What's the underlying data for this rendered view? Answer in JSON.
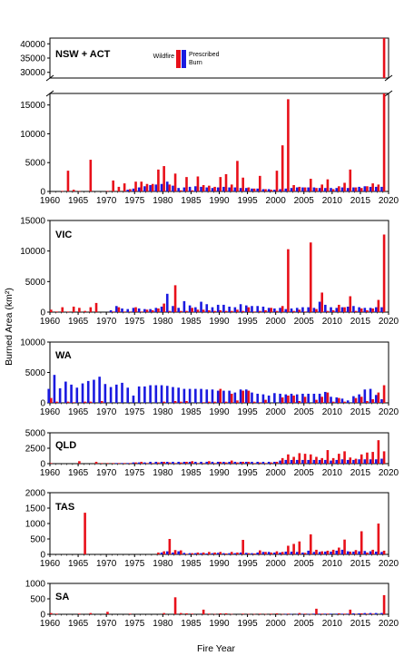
{
  "chart_data": {
    "type": "bar",
    "xlabel": "Fire Year",
    "ylabel": "Burned Area (km²)",
    "x_start": 1960,
    "x_end": 2020,
    "x_ticks": [
      "1960",
      "1965",
      "1970",
      "1975",
      "1980",
      "1985",
      "1990",
      "1995",
      "2000",
      "2005",
      "2010",
      "2015",
      "2020"
    ],
    "legend": {
      "wildfire": "Wildfire",
      "prescribed_line1": "Prescribed",
      "prescribed_line2": "Burn",
      "position": "top-center"
    },
    "colors": {
      "wildfire": "#e8101a",
      "prescribed": "#1a1ae0"
    },
    "years": [
      1960,
      1961,
      1962,
      1963,
      1964,
      1965,
      1966,
      1967,
      1968,
      1969,
      1970,
      1971,
      1972,
      1973,
      1974,
      1975,
      1976,
      1977,
      1978,
      1979,
      1980,
      1981,
      1982,
      1983,
      1984,
      1985,
      1986,
      1987,
      1988,
      1989,
      1990,
      1991,
      1992,
      1993,
      1994,
      1995,
      1996,
      1997,
      1998,
      1999,
      2000,
      2001,
      2002,
      2003,
      2004,
      2005,
      2006,
      2007,
      2008,
      2009,
      2010,
      2011,
      2012,
      2013,
      2014,
      2015,
      2016,
      2017,
      2018,
      2019
    ],
    "panels": [
      {
        "region": "NSW + ACT",
        "axis_break": true,
        "lower_ylim": [
          0,
          17000
        ],
        "lower_ticks": [
          "0",
          "5000",
          "10000",
          "15000"
        ],
        "upper_ylim": [
          28000,
          42000
        ],
        "upper_ticks": [
          "30000",
          "35000",
          "40000"
        ],
        "wildfire": [
          0,
          0,
          100,
          3600,
          300,
          100,
          0,
          5500,
          0,
          0,
          100,
          1900,
          800,
          1400,
          400,
          1700,
          1700,
          1300,
          1300,
          3800,
          4400,
          1200,
          3100,
          200,
          2500,
          200,
          2600,
          1100,
          1000,
          800,
          2500,
          3000,
          1200,
          5300,
          2400,
          700,
          500,
          2700,
          400,
          300,
          3600,
          8000,
          16000,
          1100,
          800,
          700,
          2200,
          600,
          1200,
          2100,
          400,
          900,
          1500,
          3800,
          700,
          600,
          900,
          1400,
          1200,
          42000
        ],
        "prescribed": [
          0,
          0,
          0,
          0,
          0,
          0,
          0,
          0,
          0,
          0,
          0,
          0,
          0,
          0,
          300,
          500,
          700,
          900,
          1100,
          1200,
          1300,
          1700,
          1000,
          600,
          700,
          800,
          900,
          800,
          700,
          600,
          700,
          800,
          700,
          700,
          600,
          600,
          500,
          500,
          400,
          400,
          300,
          400,
          500,
          600,
          700,
          700,
          700,
          700,
          600,
          600,
          600,
          600,
          700,
          600,
          700,
          800,
          900,
          800,
          800,
          800
        ]
      },
      {
        "region": "VIC",
        "ylim": [
          0,
          15000
        ],
        "ticks": [
          "0",
          "5000",
          "10000",
          "15000"
        ],
        "wildfire": [
          400,
          100,
          800,
          100,
          900,
          700,
          200,
          800,
          1500,
          0,
          0,
          100,
          800,
          100,
          100,
          800,
          100,
          400,
          300,
          600,
          1400,
          200,
          4400,
          200,
          200,
          700,
          400,
          400,
          300,
          200,
          300,
          200,
          200,
          400,
          200,
          800,
          100,
          200,
          300,
          700,
          200,
          1000,
          10300,
          200,
          400,
          100,
          11400,
          500,
          3200,
          200,
          300,
          1200,
          800,
          2600,
          200,
          600,
          300,
          600,
          2000,
          12700
        ],
        "prescribed": [
          0,
          0,
          0,
          0,
          0,
          0,
          0,
          0,
          0,
          0,
          0,
          300,
          1000,
          600,
          500,
          700,
          600,
          500,
          500,
          700,
          900,
          3000,
          1000,
          700,
          1800,
          1100,
          800,
          1700,
          1300,
          800,
          1200,
          1200,
          900,
          800,
          1300,
          1100,
          1000,
          1000,
          900,
          700,
          600,
          700,
          500,
          600,
          700,
          800,
          800,
          700,
          1700,
          1200,
          800,
          700,
          800,
          900,
          1000,
          800,
          700,
          700,
          800,
          800
        ]
      },
      {
        "region": "WA",
        "ylim": [
          0,
          10000
        ],
        "ticks": [
          "0",
          "5000",
          "10000"
        ],
        "wildfire": [
          800,
          200,
          0,
          200,
          100,
          0,
          200,
          200,
          0,
          300,
          0,
          0,
          0,
          0,
          0,
          0,
          0,
          0,
          0,
          0,
          200,
          0,
          300,
          200,
          300,
          0,
          0,
          100,
          200,
          200,
          2300,
          200,
          1500,
          400,
          2000,
          2000,
          200,
          100,
          500,
          0,
          0,
          900,
          1200,
          1200,
          300,
          1000,
          0,
          500,
          1000,
          1700,
          200,
          800,
          200,
          0,
          800,
          1000,
          300,
          600,
          1700,
          2900
        ],
        "prescribed": [
          2300,
          4600,
          2400,
          3500,
          3000,
          2500,
          3200,
          3600,
          3800,
          4300,
          3100,
          2600,
          3000,
          3300,
          2500,
          1200,
          2700,
          2700,
          2900,
          2900,
          2900,
          2800,
          2600,
          2500,
          2300,
          2300,
          2300,
          2300,
          2200,
          2200,
          2000,
          2000,
          2000,
          1700,
          2200,
          2200,
          1700,
          1500,
          1400,
          1200,
          1600,
          1500,
          1400,
          1500,
          1400,
          1500,
          1500,
          1500,
          1500,
          1800,
          1000,
          900,
          700,
          400,
          1100,
          1400,
          2200,
          2300,
          1300,
          600
        ]
      },
      {
        "region": "QLD",
        "ylim": [
          0,
          5000
        ],
        "ticks": [
          "0",
          "2500",
          "5000"
        ],
        "wildfire": [
          100,
          0,
          0,
          0,
          0,
          400,
          0,
          0,
          300,
          100,
          100,
          100,
          100,
          100,
          100,
          200,
          300,
          100,
          100,
          200,
          300,
          200,
          100,
          200,
          300,
          400,
          100,
          100,
          400,
          100,
          300,
          200,
          500,
          200,
          300,
          300,
          100,
          200,
          100,
          200,
          300,
          900,
          1500,
          1100,
          1700,
          1600,
          1500,
          1100,
          900,
          2200,
          900,
          1600,
          2000,
          1000,
          800,
          1500,
          1800,
          1900,
          3800,
          2000
        ],
        "prescribed": [
          0,
          0,
          0,
          0,
          0,
          0,
          0,
          0,
          0,
          0,
          0,
          0,
          100,
          100,
          100,
          200,
          200,
          200,
          300,
          300,
          300,
          300,
          300,
          300,
          300,
          300,
          300,
          300,
          300,
          300,
          300,
          300,
          300,
          300,
          300,
          300,
          300,
          300,
          300,
          300,
          300,
          500,
          600,
          600,
          600,
          600,
          600,
          600,
          600,
          600,
          500,
          600,
          700,
          600,
          600,
          700,
          700,
          700,
          700,
          800
        ]
      },
      {
        "region": "TAS",
        "ylim": [
          0,
          2000
        ],
        "ticks": [
          "0",
          "500",
          "1000",
          "1500",
          "2000"
        ],
        "wildfire": [
          0,
          0,
          0,
          0,
          0,
          0,
          1350,
          0,
          0,
          0,
          0,
          0,
          0,
          0,
          0,
          0,
          0,
          0,
          0,
          60,
          100,
          500,
          140,
          130,
          20,
          40,
          60,
          60,
          80,
          60,
          80,
          30,
          80,
          60,
          470,
          40,
          30,
          130,
          80,
          60,
          100,
          80,
          280,
          340,
          420,
          50,
          650,
          150,
          100,
          120,
          150,
          220,
          480,
          90,
          140,
          750,
          60,
          150,
          1000,
          120
        ],
        "prescribed": [
          0,
          0,
          0,
          0,
          0,
          0,
          0,
          0,
          0,
          0,
          0,
          0,
          0,
          0,
          0,
          0,
          0,
          0,
          0,
          0,
          60,
          100,
          60,
          100,
          50,
          40,
          40,
          40,
          30,
          40,
          50,
          40,
          40,
          40,
          60,
          50,
          40,
          60,
          80,
          80,
          60,
          60,
          90,
          90,
          80,
          60,
          120,
          80,
          80,
          90,
          90,
          120,
          150,
          100,
          90,
          100,
          110,
          100,
          90,
          80
        ]
      },
      {
        "region": "SA",
        "ylim": [
          0,
          1000
        ],
        "ticks": [
          "0",
          "500",
          "1000"
        ],
        "wildfire": [
          40,
          20,
          0,
          0,
          0,
          20,
          0,
          40,
          0,
          0,
          80,
          0,
          0,
          0,
          20,
          0,
          0,
          0,
          0,
          0,
          40,
          0,
          550,
          40,
          30,
          20,
          0,
          150,
          20,
          10,
          30,
          30,
          10,
          0,
          20,
          10,
          10,
          20,
          10,
          20,
          30,
          10,
          20,
          0,
          40,
          20,
          10,
          180,
          20,
          20,
          0,
          30,
          20,
          150,
          10,
          30,
          20,
          20,
          0,
          620
        ],
        "prescribed": [
          0,
          0,
          0,
          0,
          0,
          0,
          0,
          0,
          0,
          0,
          0,
          0,
          0,
          0,
          0,
          0,
          0,
          0,
          0,
          0,
          0,
          0,
          0,
          0,
          0,
          0,
          0,
          0,
          0,
          0,
          0,
          0,
          0,
          0,
          0,
          0,
          0,
          0,
          0,
          0,
          0,
          0,
          10,
          10,
          10,
          10,
          10,
          20,
          20,
          20,
          20,
          20,
          20,
          20,
          30,
          30,
          40,
          40,
          40,
          40
        ]
      }
    ]
  }
}
